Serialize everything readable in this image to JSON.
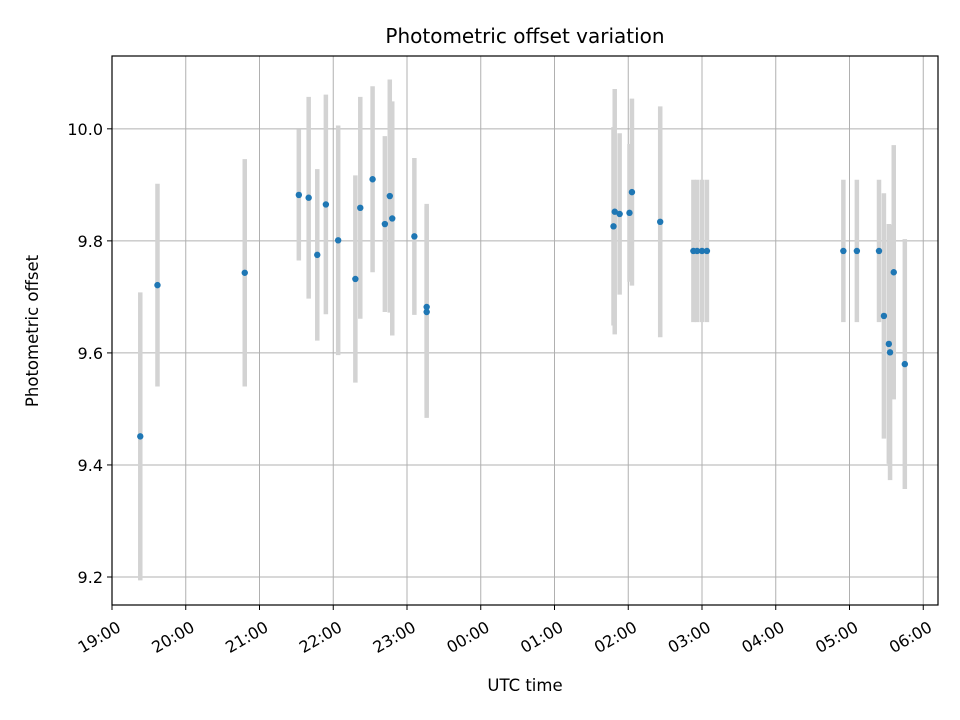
{
  "chart_data": {
    "type": "scatter",
    "title": "Photometric offset variation",
    "xlabel": "UTC time",
    "ylabel": "Photometric offset",
    "x_unit": "time of day (night of observation, spans midnight)",
    "x_ticks": [
      "19:00",
      "20:00",
      "21:00",
      "22:00",
      "23:00",
      "00:00",
      "01:00",
      "02:00",
      "03:00",
      "04:00",
      "05:00",
      "06:00"
    ],
    "y_ticks": [
      9.2,
      9.4,
      9.6,
      9.8,
      10.0
    ],
    "xlim": [
      "19:00",
      "06:12"
    ],
    "ylim": [
      9.15,
      10.13
    ],
    "grid": true,
    "colors": {
      "marker": "#1f77b4",
      "errorbar": "#d3d3d3",
      "grid": "#b0b0b0"
    },
    "series": [
      {
        "points": [
          {
            "x": "19:23",
            "y": 9.451,
            "yerr": 0.257
          },
          {
            "x": "19:37",
            "y": 9.721,
            "yerr": 0.181
          },
          {
            "x": "20:48",
            "y": 9.743,
            "yerr": 0.203
          },
          {
            "x": "21:32",
            "y": 9.882,
            "yerr": 0.117
          },
          {
            "x": "21:40",
            "y": 9.877,
            "yerr": 0.18
          },
          {
            "x": "21:47",
            "y": 9.775,
            "yerr": 0.153
          },
          {
            "x": "21:54",
            "y": 9.865,
            "yerr": 0.196
          },
          {
            "x": "22:04",
            "y": 9.801,
            "yerr": 0.205
          },
          {
            "x": "22:18",
            "y": 9.732,
            "yerr": 0.185
          },
          {
            "x": "22:22",
            "y": 9.859,
            "yerr": 0.198
          },
          {
            "x": "22:32",
            "y": 9.91,
            "yerr": 0.166
          },
          {
            "x": "22:42",
            "y": 9.83,
            "yerr": 0.157
          },
          {
            "x": "22:46",
            "y": 9.88,
            "yerr": 0.208
          },
          {
            "x": "22:48",
            "y": 9.84,
            "yerr": 0.209
          },
          {
            "x": "23:06",
            "y": 9.808,
            "yerr": 0.14
          },
          {
            "x": "23:16",
            "y": 9.682,
            "yerr": 0.184
          },
          {
            "x": "23:16",
            "y": 9.673,
            "yerr": 0.189
          },
          {
            "x": "01:48",
            "y": 9.826,
            "yerr": 0.177
          },
          {
            "x": "01:49",
            "y": 9.852,
            "yerr": 0.219
          },
          {
            "x": "01:53",
            "y": 9.848,
            "yerr": 0.144
          },
          {
            "x": "02:01",
            "y": 9.85,
            "yerr": 0.123
          },
          {
            "x": "02:03",
            "y": 9.887,
            "yerr": 0.167
          },
          {
            "x": "02:26",
            "y": 9.834,
            "yerr": 0.206
          },
          {
            "x": "02:53",
            "y": 9.782,
            "yerr": 0.127
          },
          {
            "x": "02:56",
            "y": 9.782,
            "yerr": 0.127
          },
          {
            "x": "03:00",
            "y": 9.782,
            "yerr": 0.127
          },
          {
            "x": "03:04",
            "y": 9.782,
            "yerr": 0.127
          },
          {
            "x": "04:55",
            "y": 9.782,
            "yerr": 0.127
          },
          {
            "x": "05:06",
            "y": 9.782,
            "yerr": 0.127
          },
          {
            "x": "05:24",
            "y": 9.782,
            "yerr": 0.127
          },
          {
            "x": "05:28",
            "y": 9.666,
            "yerr": 0.219
          },
          {
            "x": "05:32",
            "y": 9.616,
            "yerr": 0.214
          },
          {
            "x": "05:33",
            "y": 9.601,
            "yerr": 0.228
          },
          {
            "x": "05:36",
            "y": 9.744,
            "yerr": 0.227
          },
          {
            "x": "05:45",
            "y": 9.58,
            "yerr": 0.223
          }
        ]
      }
    ]
  }
}
